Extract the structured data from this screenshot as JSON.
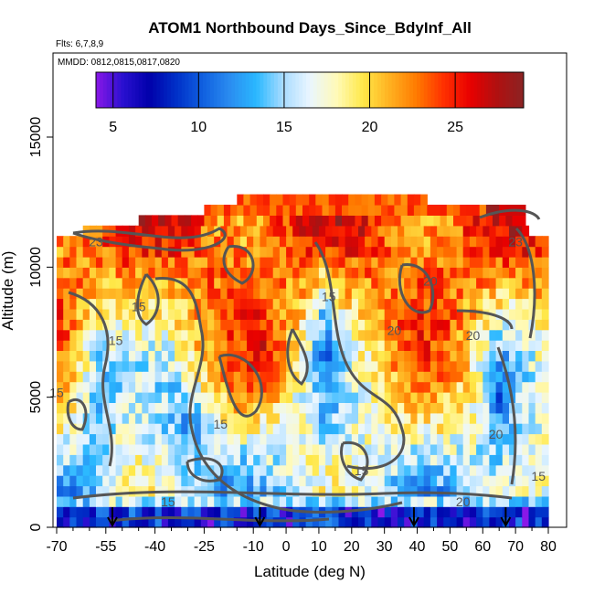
{
  "chart_data": {
    "type": "heatmap",
    "title": "ATOM1 Northbound Days_Since_BdyInf_All",
    "subtitle_flights": "Flts: 6,7,8,9",
    "subtitle_dates": "MMDD: 0812,0815,0817,0820",
    "xlabel": "Latitude (deg N)",
    "ylabel": "Altitude (m)",
    "xlim": [
      -70,
      82
    ],
    "ylim": [
      0,
      18000
    ],
    "x_ticks": [
      -70,
      -55,
      -40,
      -25,
      -10,
      0,
      10,
      20,
      30,
      40,
      50,
      60,
      70,
      80
    ],
    "x_tick_labels": [
      "-70",
      "-55",
      "-40",
      "-25",
      "-10",
      "0",
      "10",
      "20",
      "30",
      "40",
      "50",
      "60",
      "70",
      "80"
    ],
    "x_minor_ticks": [
      -65,
      -60,
      -50,
      -45,
      -35,
      -30,
      -20,
      -15,
      -5,
      5,
      15,
      25,
      35,
      45,
      55,
      65,
      75
    ],
    "y_ticks": [
      0,
      5000,
      10000,
      15000
    ],
    "y_tick_labels": [
      "0",
      "5000",
      "10000",
      "15000"
    ],
    "colorbar": {
      "range": [
        4,
        29
      ],
      "ticks": [
        5,
        10,
        15,
        20,
        25
      ],
      "tick_labels": [
        "5",
        "10",
        "15",
        "20",
        "25"
      ],
      "colors": [
        "#8a18e8",
        "#2a10d0",
        "#0000aa",
        "#0030c8",
        "#1060e0",
        "#2a8cf0",
        "#2ab8ff",
        "#a8dcff",
        "#eaf6ff",
        "#fffab8",
        "#ffe848",
        "#ffb020",
        "#ff7a00",
        "#ff3000",
        "#e80000",
        "#b01010",
        "#8a2424"
      ]
    },
    "contour_labels": [
      {
        "text": "23",
        "lat": -58,
        "alt": 10800
      },
      {
        "text": "23",
        "lat": 70,
        "alt": 10800
      },
      {
        "text": "15",
        "lat": -45,
        "alt": 8300
      },
      {
        "text": "15",
        "lat": -52,
        "alt": 7000
      },
      {
        "text": "15",
        "lat": -70,
        "alt": 5000
      },
      {
        "text": "15",
        "lat": -20,
        "alt": 3800
      },
      {
        "text": "15",
        "lat": 13,
        "alt": 8700
      },
      {
        "text": "15",
        "lat": 23,
        "alt": 2000
      },
      {
        "text": "15",
        "lat": -36,
        "alt": 800
      },
      {
        "text": "20",
        "lat": 44,
        "alt": 9300
      },
      {
        "text": "20",
        "lat": 33,
        "alt": 7400
      },
      {
        "text": "20",
        "lat": 57,
        "alt": 7200
      },
      {
        "text": "20",
        "lat": 64,
        "alt": 3400
      },
      {
        "text": "20",
        "lat": 54,
        "alt": 800
      },
      {
        "text": "15",
        "lat": 77,
        "alt": 1800
      }
    ],
    "flight_arrows_lat": [
      -53,
      -8,
      39,
      67
    ],
    "annotations": [
      "Flts: 6,7,8,9",
      "MMDD: 0812,0815,0817,0820"
    ]
  }
}
